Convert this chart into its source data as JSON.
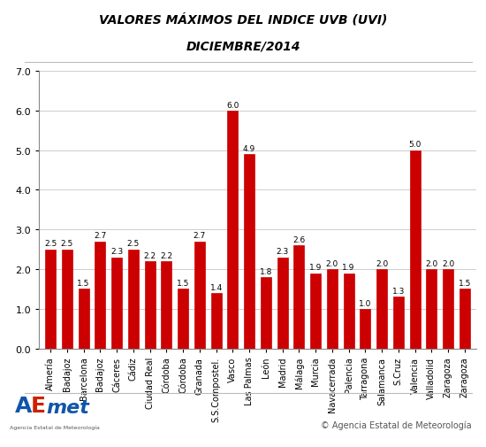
{
  "title_line1": "VALORES MÁXIMOS DEL INDICE UVB (UVI)",
  "title_line2": "DICIEMBRE/2014",
  "values": [
    2.5,
    2.5,
    1.5,
    2.7,
    2.3,
    2.5,
    2.2,
    2.2,
    1.5,
    2.7,
    1.4,
    6.0,
    4.9,
    1.8,
    2.3,
    2.6,
    1.9,
    2.0,
    1.9,
    1.0,
    2.0,
    1.3,
    5.0,
    2.0,
    2.0,
    1.5
  ],
  "city_labels": [
    "Almería",
    "Badajoz",
    "Barcelona",
    "Badajoz",
    "Cáceres",
    "Cádiz",
    "Ciudad Real",
    "Córdoba",
    "Córdoba",
    "Granada",
    "S.S.Compostel.",
    "Vasco",
    "Las Palmas",
    "León",
    "Madrid",
    "Málaga",
    "Murcia",
    "Navacerrada",
    "Palencia",
    "Tarragona",
    "Salamanca",
    "S.Cruz",
    "Valencia",
    "Valladolid",
    "Zaragoza",
    "Zaragoza"
  ],
  "bar_color": "#cc0000",
  "ylim": [
    0.0,
    7.0
  ],
  "yticks": [
    0.0,
    1.0,
    2.0,
    3.0,
    4.0,
    5.0,
    6.0,
    7.0
  ],
  "grid_color": "#bbbbbb",
  "title_fontsize": 10,
  "xlabel_fontsize": 7,
  "value_fontsize": 6.5,
  "ytick_fontsize": 8,
  "copyright_text": "© Agencia Estatal de Meteorología",
  "border_color": "#888888"
}
